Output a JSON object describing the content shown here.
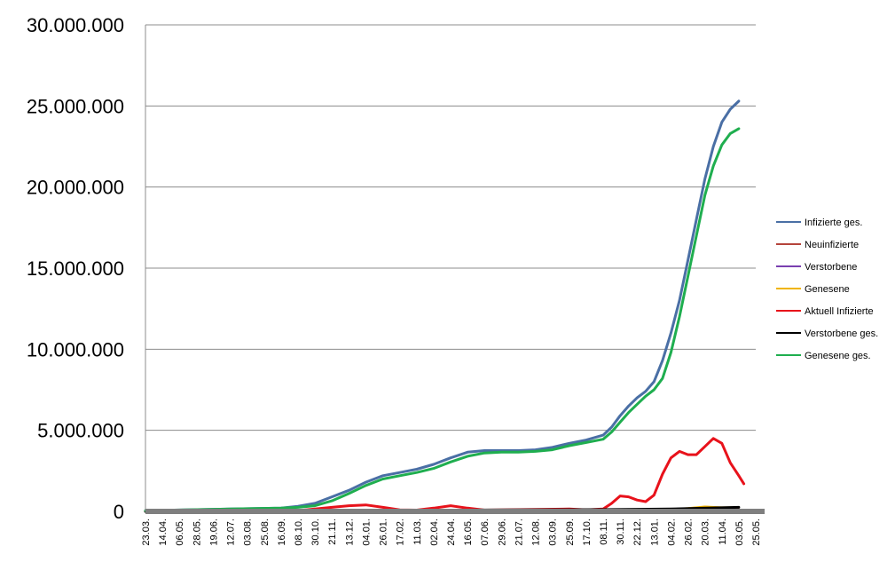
{
  "chart_data": {
    "type": "line",
    "title": "",
    "xlabel": "",
    "ylabel": "",
    "ylim": [
      0,
      30000000
    ],
    "y_ticks": [
      "0",
      "5.000.000",
      "10.000.000",
      "15.000.000",
      "20.000.000",
      "25.000.000",
      "30.000.000"
    ],
    "y_tick_values": [
      0,
      5000000,
      10000000,
      15000000,
      20000000,
      25000000,
      30000000
    ],
    "x_tick_labels": [
      "23.03.",
      "14.04.",
      "06.05.",
      "28.05.",
      "19.06.",
      "12.07.",
      "03.08.",
      "25.08.",
      "16.09.",
      "08.10.",
      "30.10.",
      "21.11.",
      "13.12.",
      "04.01.",
      "26.01.",
      "17.02.",
      "11.03.",
      "02.04.",
      "24.04.",
      "16.05.",
      "07.06.",
      "29.06.",
      "21.07.",
      "12.08.",
      "03.09.",
      "25.09.",
      "17.10.",
      "08.11.",
      "30.11.",
      "22.12.",
      "13.01.",
      "04.02.",
      "26.02.",
      "20.03.",
      "11.04.",
      "03.05.",
      "25.05."
    ],
    "grid": "horizontal",
    "legend_position": "right",
    "series": [
      {
        "name": "Infizierte ges.",
        "color": "#4a6fa5",
        "width": 3,
        "points": [
          [
            0,
            50000
          ],
          [
            5,
            150000
          ],
          [
            8,
            200000
          ],
          [
            9,
            320000
          ],
          [
            10,
            500000
          ],
          [
            11,
            900000
          ],
          [
            12,
            1300000
          ],
          [
            13,
            1800000
          ],
          [
            14,
            2200000
          ],
          [
            15,
            2400000
          ],
          [
            16,
            2600000
          ],
          [
            17,
            2900000
          ],
          [
            18,
            3300000
          ],
          [
            19,
            3650000
          ],
          [
            20,
            3750000
          ],
          [
            21,
            3750000
          ],
          [
            22,
            3750000
          ],
          [
            23,
            3800000
          ],
          [
            24,
            3950000
          ],
          [
            25,
            4200000
          ],
          [
            26,
            4400000
          ],
          [
            27,
            4700000
          ],
          [
            27.5,
            5200000
          ],
          [
            28,
            5900000
          ],
          [
            28.5,
            6500000
          ],
          [
            29,
            7000000
          ],
          [
            29.5,
            7400000
          ],
          [
            30,
            8000000
          ],
          [
            30.5,
            9300000
          ],
          [
            31,
            11000000
          ],
          [
            31.5,
            13000000
          ],
          [
            32,
            15500000
          ],
          [
            32.5,
            18000000
          ],
          [
            33,
            20500000
          ],
          [
            33.5,
            22500000
          ],
          [
            34,
            24000000
          ],
          [
            34.5,
            24800000
          ],
          [
            35,
            25300000
          ]
        ]
      },
      {
        "name": "Neuinfizierte",
        "color": "#b5443b",
        "width": 1.5,
        "points": [
          [
            0,
            0
          ],
          [
            10,
            20000
          ],
          [
            12,
            50000
          ],
          [
            13,
            80000
          ],
          [
            14,
            40000
          ],
          [
            16,
            20000
          ],
          [
            18,
            30000
          ],
          [
            20,
            20000
          ],
          [
            24,
            20000
          ],
          [
            27,
            30000
          ],
          [
            28,
            60000
          ],
          [
            30,
            50000
          ],
          [
            31,
            100000
          ],
          [
            32,
            200000
          ],
          [
            33,
            300000
          ],
          [
            34,
            250000
          ],
          [
            35,
            200000
          ]
        ]
      },
      {
        "name": "Verstorbene",
        "color": "#7a3fb0",
        "width": 1.5,
        "points": [
          [
            0,
            0
          ],
          [
            35,
            5000
          ]
        ]
      },
      {
        "name": "Genesene",
        "color": "#f0b400",
        "width": 2,
        "points": [
          [
            0,
            0
          ],
          [
            10,
            20000
          ],
          [
            14,
            40000
          ],
          [
            20,
            30000
          ],
          [
            27,
            30000
          ],
          [
            30,
            60000
          ],
          [
            32,
            200000
          ],
          [
            33,
            300000
          ],
          [
            34,
            250000
          ],
          [
            35,
            250000
          ]
        ]
      },
      {
        "name": "Aktuell Infizierte",
        "color": "#e8121b",
        "width": 3,
        "points": [
          [
            0,
            0
          ],
          [
            9,
            50000
          ],
          [
            11,
            250000
          ],
          [
            12,
            350000
          ],
          [
            13,
            400000
          ],
          [
            14,
            250000
          ],
          [
            15,
            100000
          ],
          [
            16,
            80000
          ],
          [
            17,
            200000
          ],
          [
            18,
            350000
          ],
          [
            19,
            200000
          ],
          [
            20,
            80000
          ],
          [
            25,
            150000
          ],
          [
            26,
            100000
          ],
          [
            27,
            150000
          ],
          [
            27.5,
            500000
          ],
          [
            28,
            950000
          ],
          [
            28.5,
            900000
          ],
          [
            29,
            700000
          ],
          [
            29.5,
            600000
          ],
          [
            30,
            1000000
          ],
          [
            30.5,
            2300000
          ],
          [
            31,
            3300000
          ],
          [
            31.5,
            3700000
          ],
          [
            32,
            3500000
          ],
          [
            32.5,
            3500000
          ],
          [
            33,
            4000000
          ],
          [
            33.5,
            4500000
          ],
          [
            34,
            4200000
          ],
          [
            34.5,
            3000000
          ],
          [
            35,
            2200000
          ],
          [
            35.3,
            1700000
          ]
        ]
      },
      {
        "name": "Verstorbene ges.",
        "color": "#000000",
        "width": 3,
        "points": [
          [
            0,
            0
          ],
          [
            10,
            20000
          ],
          [
            14,
            60000
          ],
          [
            20,
            90000
          ],
          [
            27,
            110000
          ],
          [
            31,
            150000
          ],
          [
            35,
            250000
          ]
        ]
      },
      {
        "name": "Genesene ges.",
        "color": "#1fae4f",
        "width": 3,
        "points": [
          [
            0,
            50000
          ],
          [
            5,
            150000
          ],
          [
            8,
            200000
          ],
          [
            9,
            250000
          ],
          [
            10,
            350000
          ],
          [
            11,
            650000
          ],
          [
            12,
            1100000
          ],
          [
            13,
            1600000
          ],
          [
            14,
            2000000
          ],
          [
            15,
            2200000
          ],
          [
            16,
            2400000
          ],
          [
            17,
            2650000
          ],
          [
            18,
            3050000
          ],
          [
            19,
            3400000
          ],
          [
            20,
            3600000
          ],
          [
            21,
            3650000
          ],
          [
            22,
            3650000
          ],
          [
            23,
            3700000
          ],
          [
            24,
            3800000
          ],
          [
            25,
            4050000
          ],
          [
            26,
            4250000
          ],
          [
            27,
            4450000
          ],
          [
            27.5,
            4900000
          ],
          [
            28,
            5500000
          ],
          [
            28.5,
            6100000
          ],
          [
            29,
            6600000
          ],
          [
            29.5,
            7100000
          ],
          [
            30,
            7500000
          ],
          [
            30.5,
            8200000
          ],
          [
            31,
            9800000
          ],
          [
            31.5,
            12000000
          ],
          [
            32,
            14500000
          ],
          [
            32.5,
            17000000
          ],
          [
            33,
            19500000
          ],
          [
            33.5,
            21300000
          ],
          [
            34,
            22600000
          ],
          [
            34.5,
            23300000
          ],
          [
            35,
            23600000
          ]
        ]
      }
    ]
  }
}
